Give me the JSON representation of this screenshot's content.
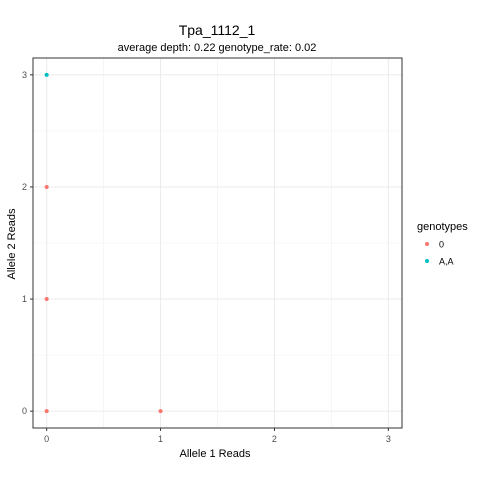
{
  "chart_data": {
    "type": "scatter",
    "title": "Tpa_1112_1",
    "subtitle": "average depth:  0.22  genotype_rate:  0.02",
    "xlabel": "Allele 1 Reads",
    "ylabel": "Allele 2 Reads",
    "xlim": [
      -0.12,
      3.12
    ],
    "ylim": [
      -0.15,
      3.15
    ],
    "x_ticks": [
      0,
      1,
      2,
      3
    ],
    "y_ticks": [
      0,
      1,
      2,
      3
    ],
    "grid": true,
    "legend": {
      "title": "genotypes",
      "position": "right"
    },
    "series": [
      {
        "name": "0",
        "color": "#F8766D",
        "points": [
          {
            "x": 0,
            "y": 0
          },
          {
            "x": 1,
            "y": 0
          },
          {
            "x": 0,
            "y": 1
          },
          {
            "x": 0,
            "y": 2
          }
        ]
      },
      {
        "name": "A,A",
        "color": "#00BFC4",
        "points": [
          {
            "x": 0,
            "y": 3
          }
        ]
      }
    ]
  }
}
